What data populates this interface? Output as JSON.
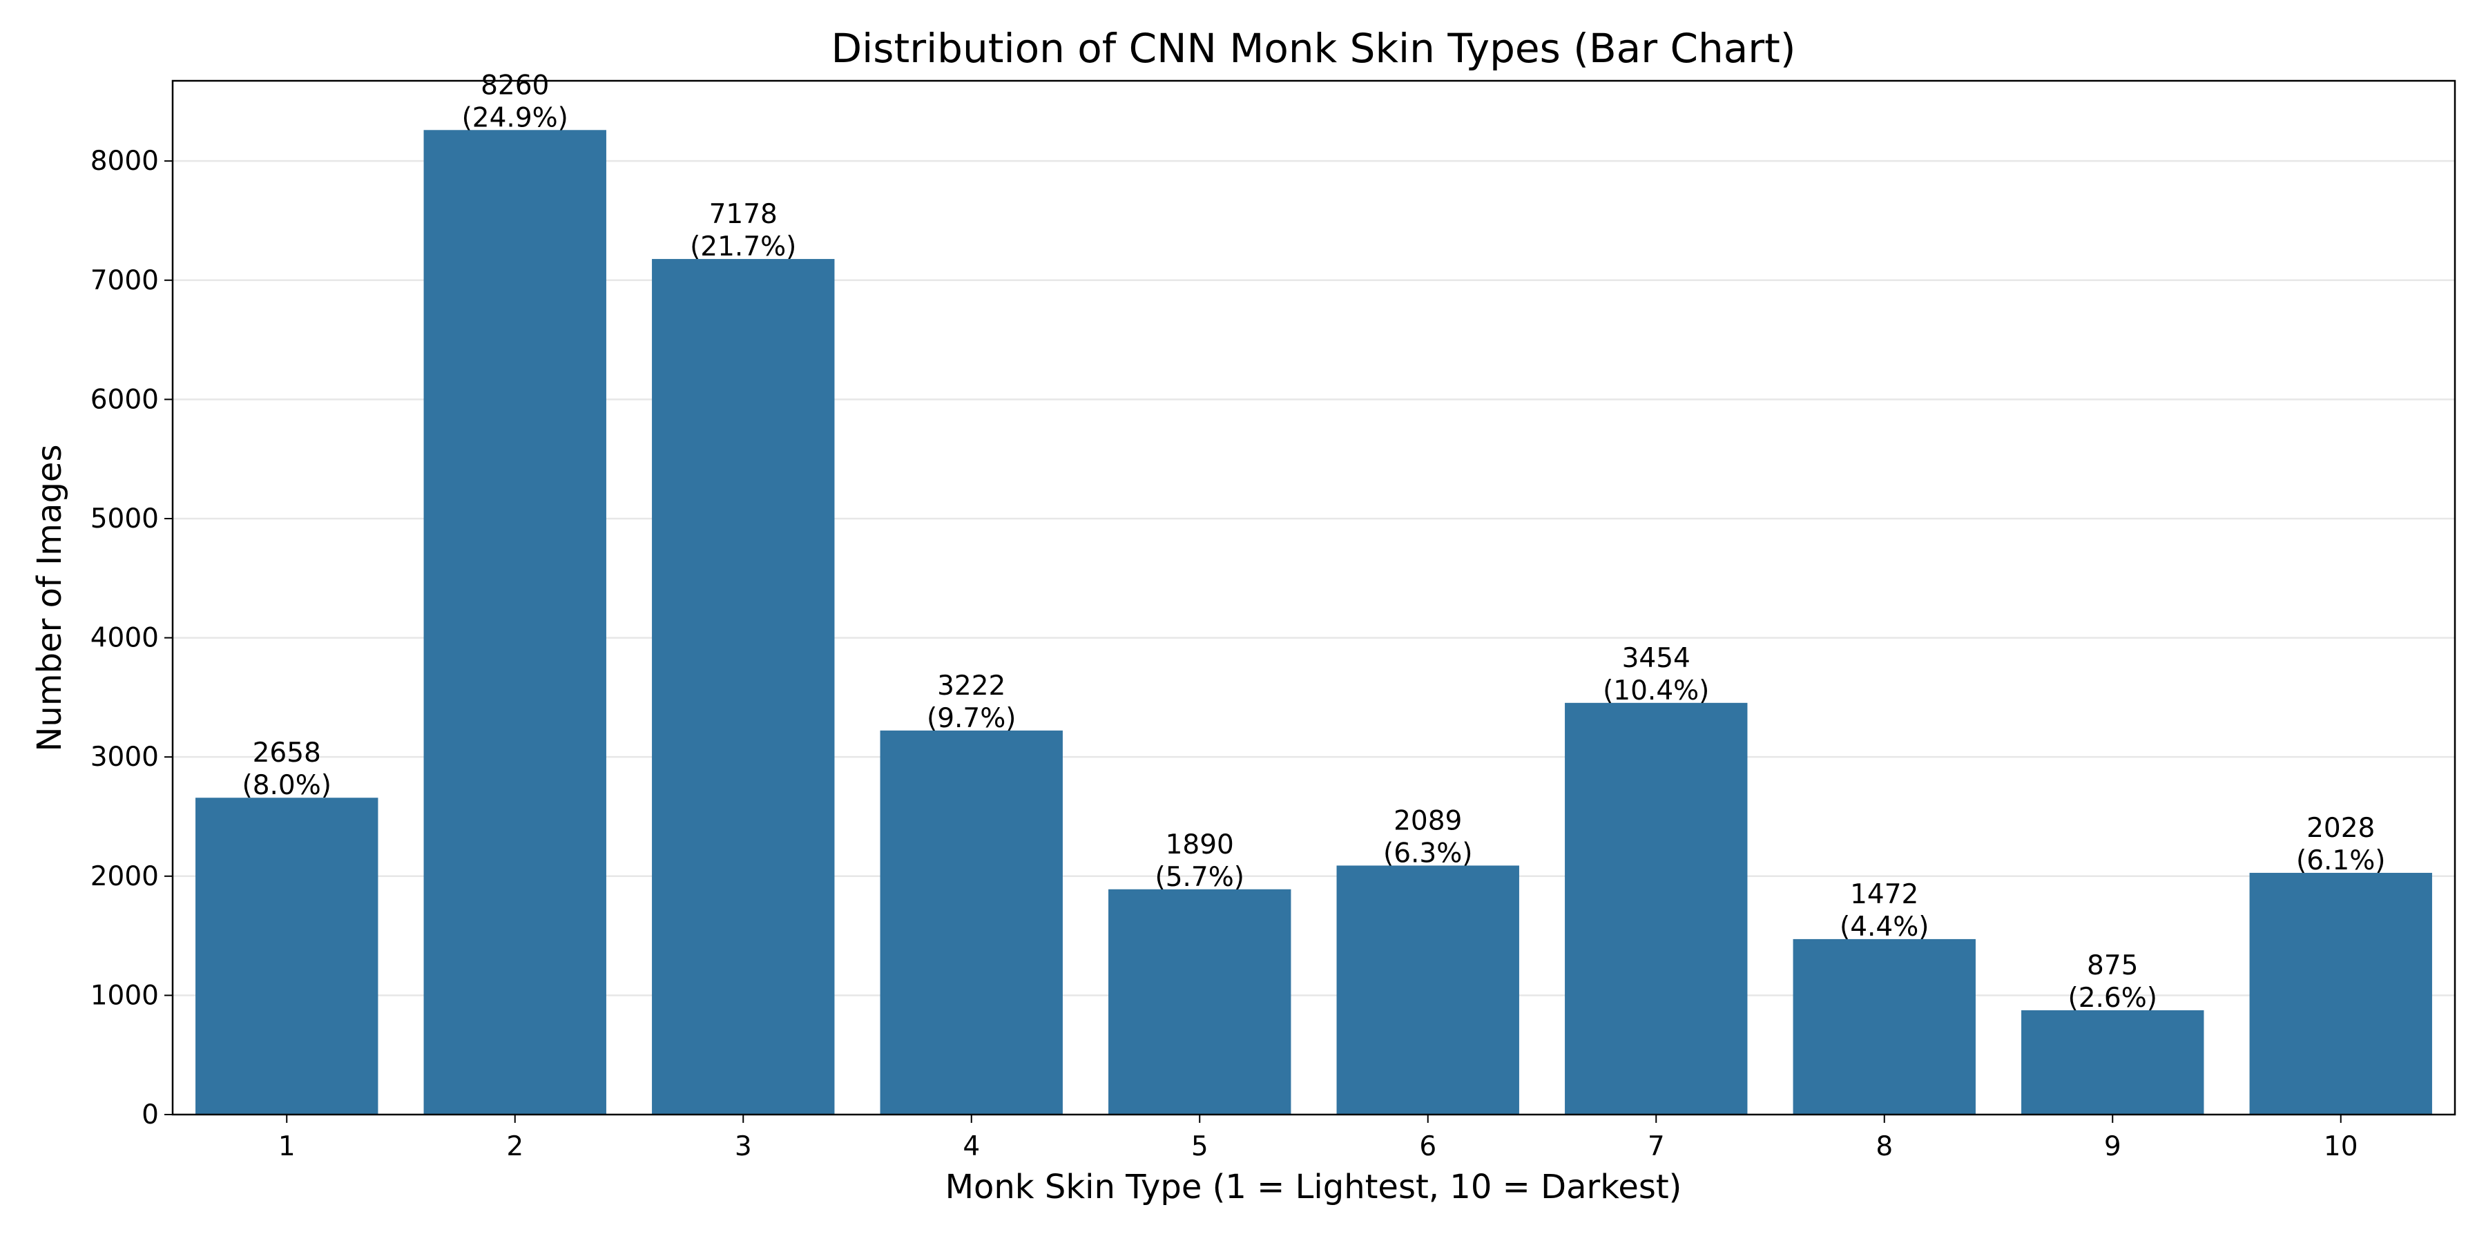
{
  "chart_data": {
    "type": "bar",
    "title": "Distribution of CNN Monk Skin Types (Bar Chart)",
    "xlabel": "Monk Skin Type (1 = Lightest, 10 = Darkest)",
    "ylabel": "Number of Images",
    "categories": [
      "1",
      "2",
      "3",
      "4",
      "5",
      "6",
      "7",
      "8",
      "9",
      "10"
    ],
    "values": [
      2658,
      8260,
      7178,
      3222,
      1890,
      2089,
      3454,
      1472,
      875,
      2028
    ],
    "percent_labels": [
      "(8.0%)",
      "(24.9%)",
      "(21.7%)",
      "(9.7%)",
      "(5.7%)",
      "(6.3%)",
      "(10.4%)",
      "(4.4%)",
      "(2.6%)",
      "(6.1%)"
    ],
    "ylim": [
      0,
      8673
    ],
    "yticks": [
      0,
      1000,
      2000,
      3000,
      4000,
      5000,
      6000,
      7000,
      8000
    ],
    "grid": "y-axis on",
    "legend": "none",
    "bar_color": "#3274a1"
  }
}
